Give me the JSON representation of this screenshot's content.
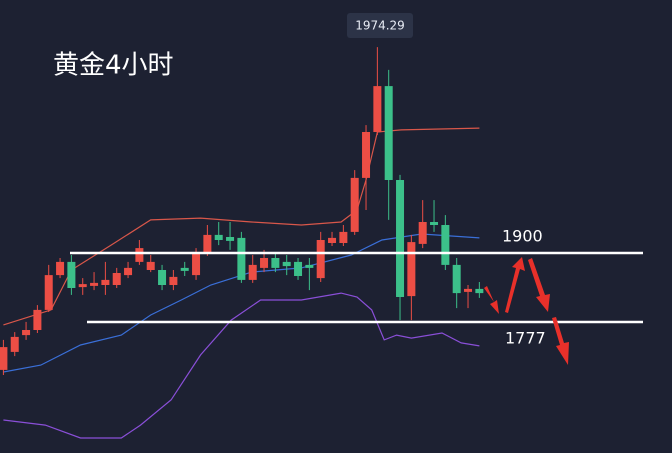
{
  "chart_data": {
    "type": "candlestick",
    "title": "黄金4小时",
    "high_label": "1974.29",
    "level_labels": [
      "1900",
      "1777"
    ],
    "up_color": "#ec4e45",
    "down_color": "#3cc08a",
    "ylim": [
      1840,
      1990
    ],
    "xlim": [
      -0.3,
      59
    ],
    "ohlc": [
      [
        1866.7,
        1876.7,
        1865,
        1874.3
      ],
      [
        1872.7,
        1879.3,
        1871.3,
        1877.7
      ],
      [
        1878.3,
        1882.7,
        1876.7,
        1880
      ],
      [
        1880,
        1888.3,
        1879,
        1886.7
      ],
      [
        1886.7,
        1901.7,
        1886,
        1898.3
      ],
      [
        1898.3,
        1904,
        1897.3,
        1902.7
      ],
      [
        1902.7,
        1905,
        1891.7,
        1894
      ],
      [
        1894.3,
        1897.3,
        1891.7,
        1895.3
      ],
      [
        1894.7,
        1899.3,
        1893.3,
        1895.7
      ],
      [
        1895,
        1902.7,
        1891.7,
        1896.7
      ],
      [
        1895,
        1900.7,
        1894,
        1899
      ],
      [
        1898.3,
        1902.7,
        1897.3,
        1900.7
      ],
      [
        1902.7,
        1910,
        1901.7,
        1907.3
      ],
      [
        1900,
        1905,
        1899.3,
        1902.7
      ],
      [
        1900,
        1901.7,
        1893.3,
        1895
      ],
      [
        1895,
        1900,
        1893.3,
        1897.7
      ],
      [
        1900.7,
        1902.7,
        1898,
        1899.7
      ],
      [
        1898.3,
        1907.3,
        1896.7,
        1905.7
      ],
      [
        1905.7,
        1915,
        1904.7,
        1911.7
      ],
      [
        1911.7,
        1916,
        1908.3,
        1910
      ],
      [
        1911,
        1916,
        1906.7,
        1909.7
      ],
      [
        1910.7,
        1912.7,
        1895.7,
        1896.7
      ],
      [
        1896.7,
        1905,
        1895.7,
        1901.7
      ],
      [
        1900.7,
        1906.7,
        1899.3,
        1904
      ],
      [
        1904,
        1906,
        1899.3,
        1900.7
      ],
      [
        1902.7,
        1905,
        1898.3,
        1901.3
      ],
      [
        1902.7,
        1904,
        1896.7,
        1898
      ],
      [
        1901.7,
        1904,
        1893.3,
        1900.7
      ],
      [
        1897.3,
        1912.7,
        1896,
        1910
      ],
      [
        1909,
        1912.7,
        1908,
        1910.7
      ],
      [
        1909,
        1915,
        1908,
        1912.7
      ],
      [
        1912.7,
        1933.3,
        1911.7,
        1930.7
      ],
      [
        1930.7,
        1948.3,
        1920,
        1946
      ],
      [
        1946,
        1974.29,
        1945,
        1961.3
      ],
      [
        1961.3,
        1966.7,
        1916.7,
        1930
      ],
      [
        1930,
        1931.7,
        1883.3,
        1891
      ],
      [
        1891.3,
        1911.7,
        1883.3,
        1909.3
      ],
      [
        1908.7,
        1923.3,
        1907.3,
        1916
      ],
      [
        1916,
        1923.3,
        1912.7,
        1915
      ],
      [
        1915,
        1918.3,
        1900,
        1901.7
      ],
      [
        1901.7,
        1904,
        1887.3,
        1892.3
      ],
      [
        1892.7,
        1895,
        1887.3,
        1893.7
      ],
      [
        1893.7,
        1896,
        1890.7,
        1892.3
      ]
    ],
    "bands": [
      {
        "color": "#d9574a",
        "x": [
          0,
          4.2,
          6,
          9.5,
          13,
          17.4,
          21.9,
          26.3,
          29.8,
          31.2,
          32,
          33,
          35.1,
          42
        ],
        "values": [
          1881.7,
          1886.7,
          1900,
          1908.3,
          1916.7,
          1917.3,
          1916,
          1915,
          1916,
          1920,
          1930,
          1946,
          1946.7,
          1947.3
        ]
      },
      {
        "color": "#3a6fd8",
        "x": [
          0,
          3.3,
          6.8,
          10.4,
          13,
          15.7,
          18.3,
          21.9,
          26.3,
          30.7,
          33.4,
          36.9,
          42
        ],
        "values": [
          1866,
          1868.3,
          1875,
          1878.3,
          1885,
          1890,
          1895,
          1899.3,
          1900.7,
          1905,
          1910,
          1912,
          1910.7
        ]
      },
      {
        "color": "#8a4fd8",
        "x": [
          0,
          3.7,
          6.8,
          10.4,
          12.1,
          14.8,
          17.4,
          20.1,
          22.7,
          26.3,
          29.8,
          31.2,
          32.5,
          33.6,
          34.7,
          36,
          38.7,
          40.4,
          42
        ],
        "values": [
          1850,
          1848.3,
          1844,
          1844,
          1848.3,
          1856.7,
          1871.7,
          1883.3,
          1890,
          1890,
          1892.3,
          1891,
          1886.7,
          1876.7,
          1878.3,
          1877.3,
          1879,
          1875.7,
          1874.7
        ]
      }
    ]
  }
}
